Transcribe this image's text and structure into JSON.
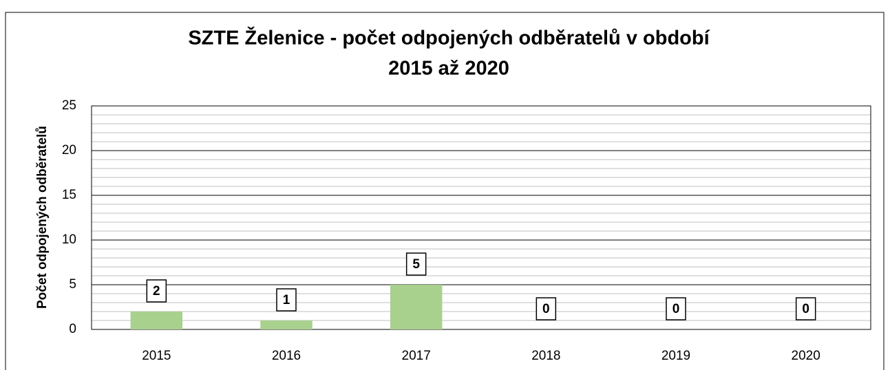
{
  "chart_data": {
    "type": "bar",
    "title": [
      "SZTE Želenice - počet odpojených odběratelů v období",
      "2015 až 2020"
    ],
    "y_axis_label": "Počet odpojených odběratelů",
    "categories": [
      "2015",
      "2016",
      "2017",
      "2018",
      "2019",
      "2020"
    ],
    "values": [
      2,
      1,
      5,
      0,
      0,
      0
    ],
    "color": "#a9d18e",
    "ylim": [
      0,
      25
    ],
    "yticks": [
      0,
      5,
      10,
      15,
      20,
      25
    ],
    "minor_yticks": [
      1,
      2,
      3,
      4,
      6,
      7,
      8,
      9,
      11,
      12,
      13,
      14,
      16,
      17,
      18,
      19,
      21,
      22,
      23,
      24
    ],
    "grid": true
  }
}
